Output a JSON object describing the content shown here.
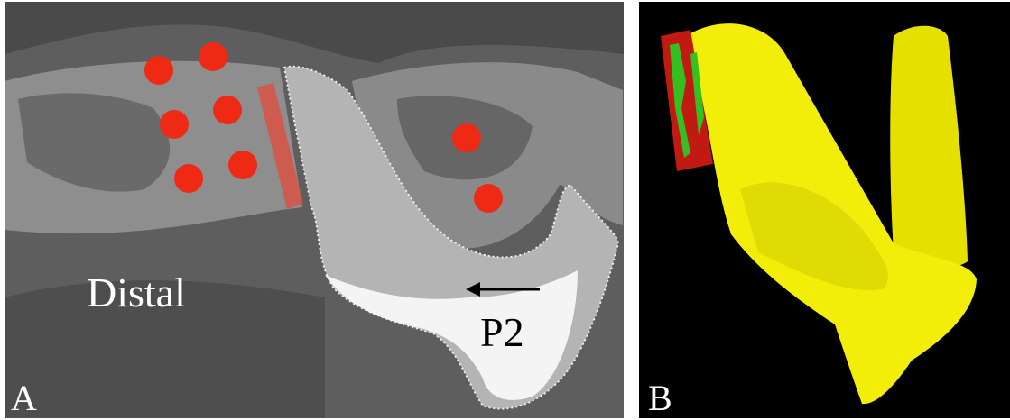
{
  "panels": [
    {
      "label": "A",
      "annotations": [
        "Distal",
        "P2"
      ]
    },
    {
      "label": "B"
    }
  ]
}
